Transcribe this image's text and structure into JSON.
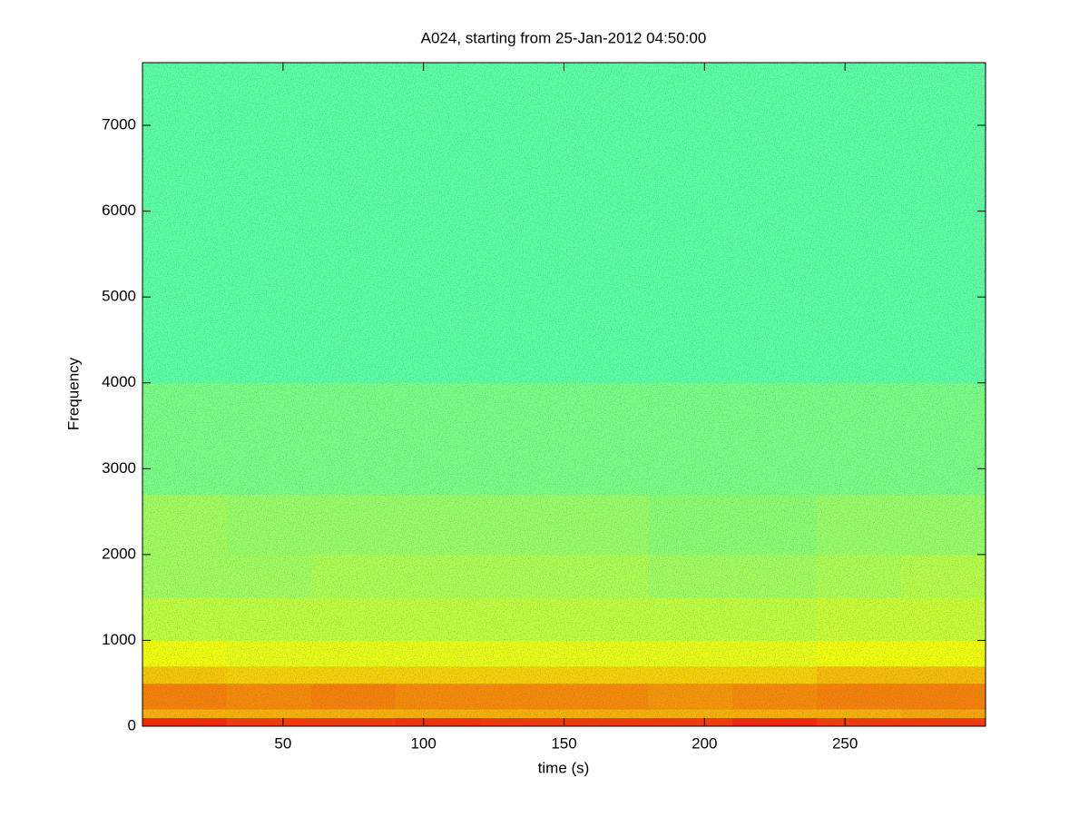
{
  "chart_data": {
    "type": "spectrogram",
    "title": "A024, starting from 25-Jan-2012 04:50:00",
    "x_label": "time (s)",
    "y_label": "Frequency",
    "xlim": [
      0,
      300
    ],
    "ylim": [
      0,
      7730
    ],
    "xticks": [
      50,
      100,
      150,
      200,
      250
    ],
    "yticks": [
      0,
      1000,
      2000,
      3000,
      4000,
      5000,
      6000,
      7000
    ],
    "colormap": "jet",
    "clim": [
      0,
      1
    ],
    "x_edges": [
      0,
      30,
      60,
      90,
      120,
      150,
      180,
      210,
      240,
      270,
      300
    ],
    "y_edges": [
      0,
      100,
      200,
      500,
      700,
      1000,
      1500,
      2000,
      2700,
      4000,
      7730
    ],
    "z": [
      [
        0.84,
        0.82,
        0.82,
        0.83,
        0.82,
        0.82,
        0.82,
        0.84,
        0.82,
        0.82
      ],
      [
        0.7,
        0.7,
        0.7,
        0.7,
        0.7,
        0.7,
        0.7,
        0.7,
        0.7,
        0.71
      ],
      [
        0.75,
        0.74,
        0.75,
        0.74,
        0.74,
        0.74,
        0.73,
        0.74,
        0.75,
        0.75
      ],
      [
        0.68,
        0.67,
        0.67,
        0.67,
        0.67,
        0.67,
        0.67,
        0.67,
        0.69,
        0.69
      ],
      [
        0.62,
        0.61,
        0.61,
        0.61,
        0.61,
        0.61,
        0.61,
        0.61,
        0.62,
        0.62
      ],
      [
        0.57,
        0.57,
        0.57,
        0.57,
        0.57,
        0.57,
        0.57,
        0.57,
        0.58,
        0.58
      ],
      [
        0.54,
        0.54,
        0.55,
        0.55,
        0.55,
        0.55,
        0.54,
        0.54,
        0.55,
        0.56
      ],
      [
        0.54,
        0.53,
        0.53,
        0.53,
        0.53,
        0.53,
        0.52,
        0.52,
        0.53,
        0.53
      ],
      [
        0.5,
        0.5,
        0.5,
        0.5,
        0.5,
        0.5,
        0.5,
        0.5,
        0.5,
        0.5
      ],
      [
        0.47,
        0.47,
        0.47,
        0.47,
        0.47,
        0.47,
        0.47,
        0.47,
        0.47,
        0.47
      ]
    ]
  }
}
